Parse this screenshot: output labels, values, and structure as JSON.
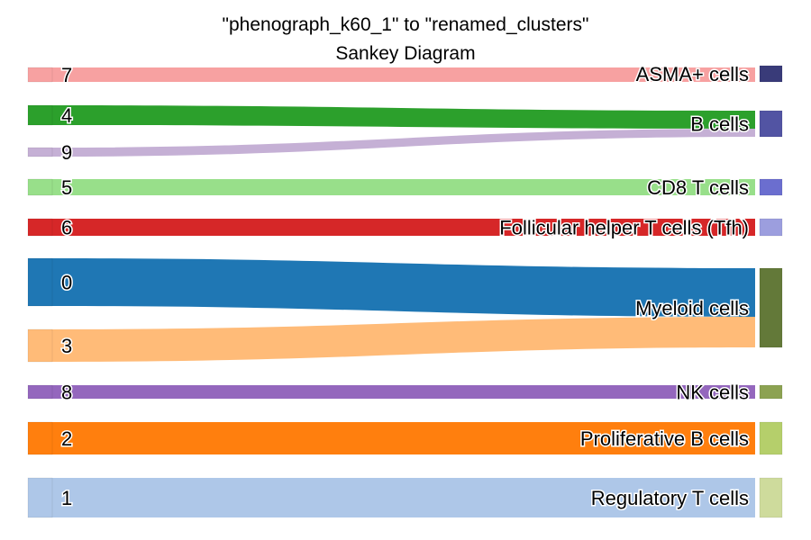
{
  "title": {
    "line1": "\"phenograph_k60_1\" to \"renamed_clusters\"",
    "line2": "Sankey Diagram"
  },
  "sources": [
    {
      "label": "7",
      "color": "#f7a1a1"
    },
    {
      "label": "4",
      "color": "#2ca02c"
    },
    {
      "label": "9",
      "color": "#c5b0d5"
    },
    {
      "label": "5",
      "color": "#98df8a"
    },
    {
      "label": "6",
      "color": "#d62728"
    },
    {
      "label": "0",
      "color": "#1f77b4"
    },
    {
      "label": "3",
      "color": "#ffbb78"
    },
    {
      "label": "8",
      "color": "#9467bd"
    },
    {
      "label": "2",
      "color": "#ff7f0e"
    },
    {
      "label": "1",
      "color": "#aec7e8"
    }
  ],
  "targets": [
    {
      "label": "ASMA+ cells",
      "color": "#393b79"
    },
    {
      "label": "B cells",
      "color": "#5254a3"
    },
    {
      "label": "CD8 T cells",
      "color": "#6b6ecf"
    },
    {
      "label": "Follicular helper T cells (Tfh)",
      "color": "#9c9ede"
    },
    {
      "label": "Myeloid cells",
      "color": "#637939"
    },
    {
      "label": "NK cells",
      "color": "#8ca252"
    },
    {
      "label": "Proliferative B cells",
      "color": "#b5cf6b"
    },
    {
      "label": "Regulatory T cells",
      "color": "#cedb9c"
    }
  ],
  "flows": [
    {
      "source": "7",
      "target": "ASMA+ cells"
    },
    {
      "source": "4",
      "target": "B cells"
    },
    {
      "source": "9",
      "target": "B cells"
    },
    {
      "source": "5",
      "target": "CD8 T cells"
    },
    {
      "source": "6",
      "target": "Follicular helper T cells (Tfh)"
    },
    {
      "source": "0",
      "target": "Myeloid cells"
    },
    {
      "source": "3",
      "target": "Myeloid cells"
    },
    {
      "source": "8",
      "target": "NK cells"
    },
    {
      "source": "2",
      "target": "Proliferative B cells"
    },
    {
      "source": "1",
      "target": "Regulatory T cells"
    }
  ]
}
